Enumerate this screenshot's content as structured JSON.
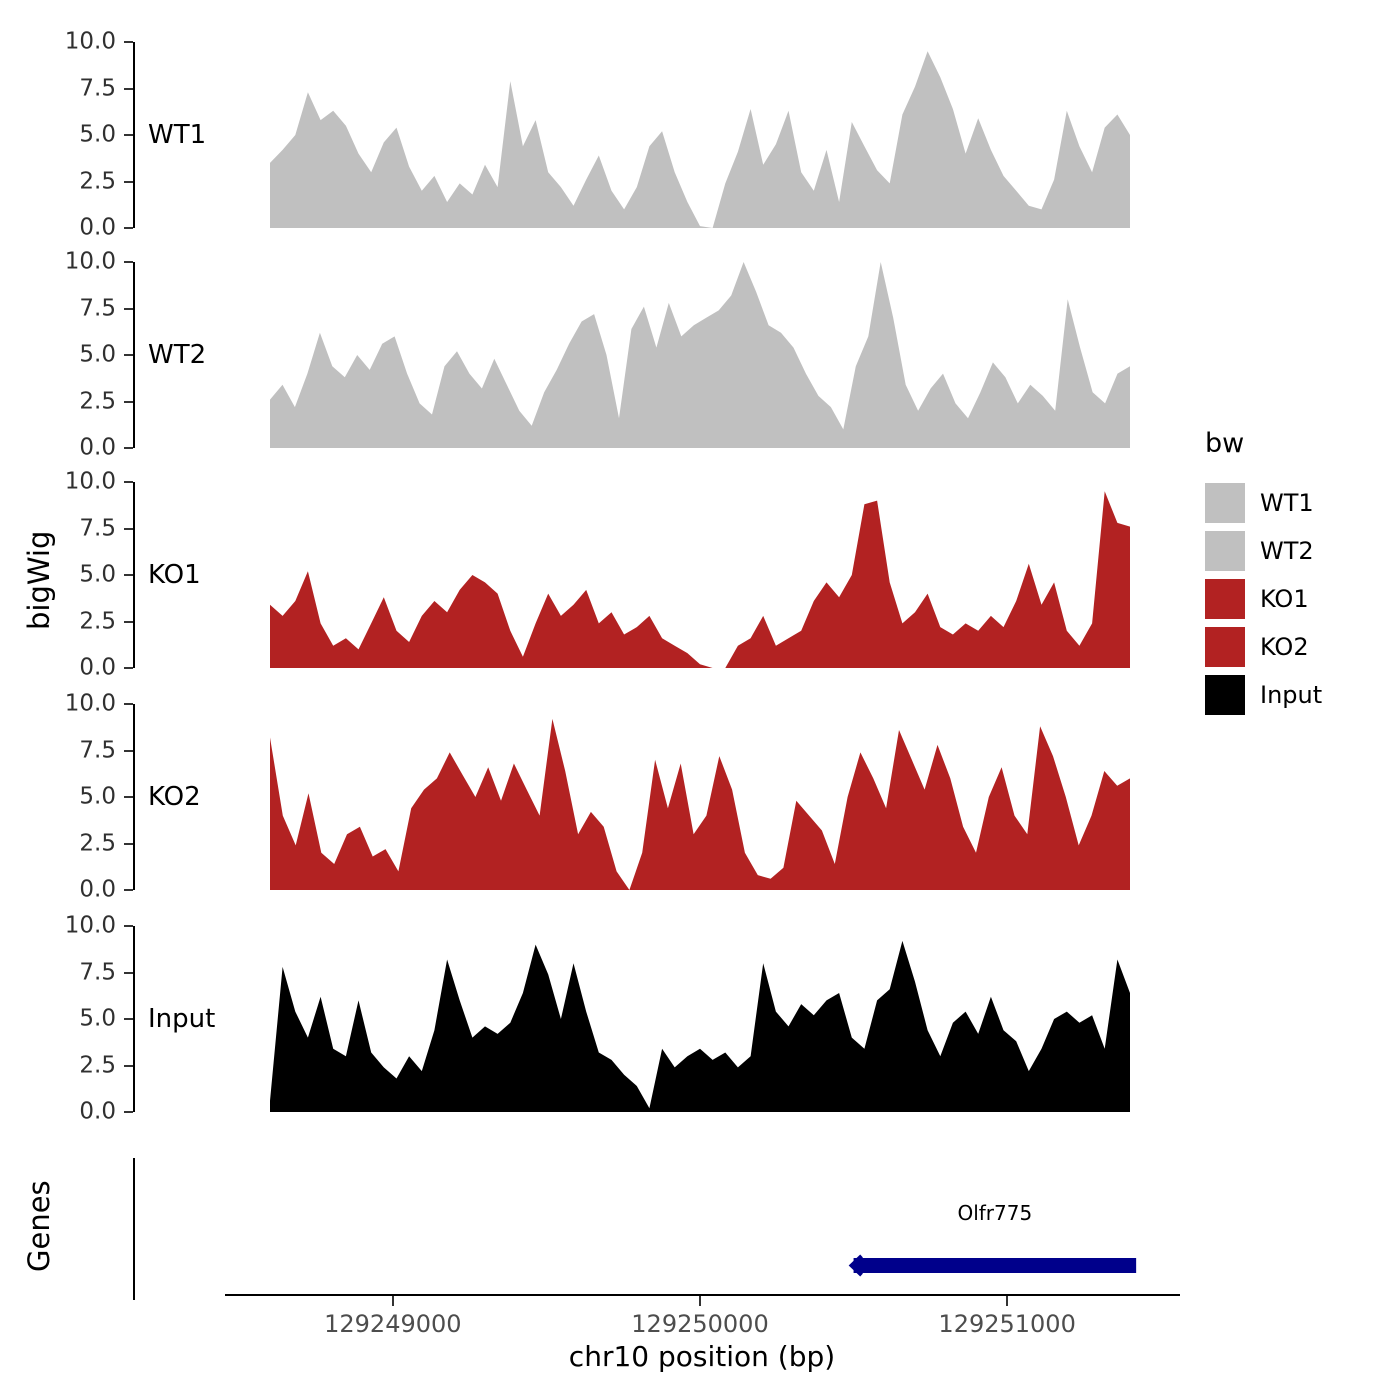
{
  "figure": {
    "y_axis_title": "bigWig",
    "genes_axis_title": "Genes",
    "x_axis_title": "chr10 position (bp)"
  },
  "axis": {
    "y_ticks": [
      "10.0",
      "7.5",
      "5.0",
      "2.5",
      "0.0"
    ],
    "x_ticks": [
      {
        "label": "129249000",
        "value": 129249000
      },
      {
        "label": "129250000",
        "value": 129250000
      },
      {
        "label": "129251000",
        "value": 129251000
      }
    ]
  },
  "legend": {
    "title": "bw",
    "entries": [
      {
        "label": "WT1",
        "color": "#C0C0C0"
      },
      {
        "label": "WT2",
        "color": "#C0C0C0"
      },
      {
        "label": "KO1",
        "color": "#B22222"
      },
      {
        "label": "KO2",
        "color": "#B22222"
      },
      {
        "label": "Input",
        "color": "#000000"
      }
    ]
  },
  "chart_data": {
    "type": "area",
    "title": "",
    "xlabel": "chr10 position (bp)",
    "ylabel": "bigWig",
    "ylim": [
      0,
      10
    ],
    "x_range_bp": [
      129248600,
      129251400
    ],
    "x_tick_values": [
      129249000,
      129250000,
      129251000
    ],
    "facets": [
      "WT1",
      "WT2",
      "KO1",
      "KO2",
      "Input"
    ],
    "series": [
      {
        "name": "WT1",
        "color": "#C0C0C0",
        "values": [
          3.5,
          4.2,
          5.0,
          7.3,
          5.8,
          6.3,
          5.5,
          4.0,
          3.0,
          4.6,
          5.4,
          3.3,
          2.0,
          2.8,
          1.4,
          2.4,
          1.8,
          3.4,
          2.2,
          7.9,
          4.4,
          5.8,
          3.0,
          2.2,
          1.2,
          2.6,
          3.9,
          2.0,
          1.0,
          2.2,
          4.4,
          5.2,
          3.0,
          1.4,
          0.1,
          0.0,
          2.4,
          4.1,
          6.4,
          3.4,
          4.5,
          6.3,
          3.0,
          2.0,
          4.2,
          1.4,
          5.7,
          4.4,
          3.1,
          2.4,
          6.1,
          7.6,
          9.5,
          8.1,
          6.4,
          4.0,
          5.9,
          4.2,
          2.8,
          2.0,
          1.2,
          1.0,
          2.6,
          6.3,
          4.4,
          3.0,
          5.4,
          6.1,
          5.0
        ]
      },
      {
        "name": "WT2",
        "color": "#C0C0C0",
        "values": [
          2.6,
          3.4,
          2.2,
          4.0,
          6.2,
          4.4,
          3.8,
          5.0,
          4.2,
          5.6,
          6.0,
          4.0,
          2.4,
          1.8,
          4.4,
          5.2,
          4.0,
          3.2,
          4.8,
          3.4,
          2.0,
          1.2,
          3.0,
          4.2,
          5.6,
          6.8,
          7.2,
          5.0,
          1.6,
          6.4,
          7.6,
          5.4,
          7.8,
          6.0,
          6.6,
          7.0,
          7.4,
          8.2,
          10.0,
          8.4,
          6.6,
          6.2,
          5.4,
          4.0,
          2.8,
          2.2,
          1.0,
          4.4,
          6.0,
          10.0,
          7.0,
          3.4,
          2.0,
          3.2,
          4.0,
          2.4,
          1.6,
          3.0,
          4.6,
          3.8,
          2.4,
          3.4,
          2.8,
          2.0,
          8.0,
          5.4,
          3.0,
          2.4,
          4.0,
          4.4
        ]
      },
      {
        "name": "KO1",
        "color": "#B22222",
        "values": [
          3.4,
          2.8,
          3.6,
          5.2,
          2.4,
          1.2,
          1.6,
          1.0,
          2.4,
          3.8,
          2.0,
          1.4,
          2.8,
          3.6,
          3.0,
          4.2,
          5.0,
          4.6,
          4.0,
          2.0,
          0.6,
          2.4,
          4.0,
          2.8,
          3.4,
          4.2,
          2.4,
          3.0,
          1.8,
          2.2,
          2.8,
          1.6,
          1.2,
          0.8,
          0.2,
          0.0,
          0.0,
          1.2,
          1.6,
          2.8,
          1.2,
          1.6,
          2.0,
          3.6,
          4.6,
          3.8,
          5.0,
          8.8,
          9.0,
          4.6,
          2.4,
          3.0,
          4.0,
          2.2,
          1.8,
          2.4,
          2.0,
          2.8,
          2.2,
          3.6,
          5.6,
          3.4,
          4.6,
          2.0,
          1.2,
          2.4,
          9.5,
          7.8,
          7.6
        ]
      },
      {
        "name": "KO2",
        "color": "#B22222",
        "values": [
          8.2,
          4.0,
          2.4,
          5.2,
          2.0,
          1.4,
          3.0,
          3.4,
          1.8,
          2.2,
          1.0,
          4.4,
          5.4,
          6.0,
          7.4,
          6.2,
          5.0,
          6.6,
          4.8,
          6.8,
          5.4,
          4.0,
          9.2,
          6.4,
          3.0,
          4.2,
          3.4,
          1.0,
          0.0,
          2.0,
          7.0,
          4.4,
          6.8,
          3.0,
          4.0,
          7.2,
          5.4,
          2.0,
          0.8,
          0.6,
          1.2,
          4.8,
          4.0,
          3.2,
          1.4,
          5.0,
          7.4,
          6.0,
          4.4,
          8.6,
          7.0,
          5.4,
          7.8,
          6.0,
          3.4,
          2.0,
          5.0,
          6.6,
          4.0,
          3.0,
          8.8,
          7.2,
          5.0,
          2.4,
          4.0,
          6.4,
          5.6,
          6.0
        ]
      },
      {
        "name": "Input",
        "color": "#000000",
        "values": [
          0.6,
          7.8,
          5.4,
          4.0,
          6.2,
          3.4,
          3.0,
          6.0,
          3.2,
          2.4,
          1.8,
          3.0,
          2.2,
          4.4,
          8.2,
          6.0,
          4.0,
          4.6,
          4.2,
          4.8,
          6.4,
          9.0,
          7.4,
          5.0,
          8.0,
          5.4,
          3.2,
          2.8,
          2.0,
          1.4,
          0.2,
          3.4,
          2.4,
          3.0,
          3.4,
          2.8,
          3.2,
          2.4,
          3.0,
          8.0,
          5.4,
          4.6,
          5.8,
          5.2,
          6.0,
          6.4,
          4.0,
          3.4,
          6.0,
          6.6,
          9.2,
          7.0,
          4.4,
          3.0,
          4.8,
          5.4,
          4.2,
          6.2,
          4.4,
          3.8,
          2.2,
          3.4,
          5.0,
          5.4,
          4.8,
          5.2,
          3.4,
          8.2,
          6.4
        ]
      }
    ],
    "gene": {
      "label": "Olfr775",
      "start_bp": 129250500,
      "end_bp": 129251420,
      "strand": "-",
      "color": "#00008B"
    }
  }
}
